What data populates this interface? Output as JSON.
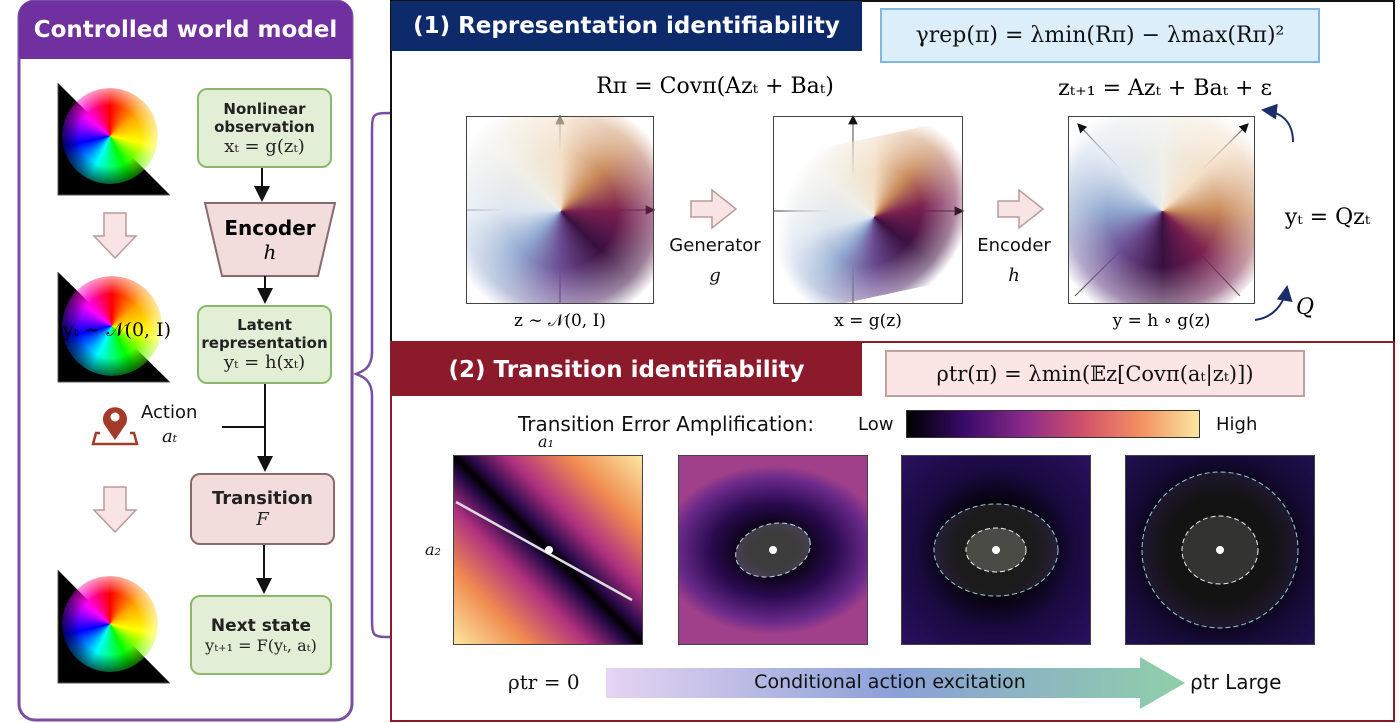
{
  "left_panel": {
    "title": "Controlled world model",
    "observation": {
      "label": "Nonlinear observation",
      "formula": "xₜ = g(zₜ)"
    },
    "encoder": {
      "label": "Encoder",
      "symbol": "h"
    },
    "latent": {
      "label": "Latent representation",
      "formula": "yₜ = h(xₜ)"
    },
    "latent_distribution": "yₜ ∼ 𝒩(0, I)",
    "action": {
      "label": "Action",
      "symbol": "aₜ"
    },
    "transition": {
      "label": "Transition",
      "symbol": "F"
    },
    "next_state": {
      "label": "Next state",
      "formula": "yₜ₊₁ = F(yₜ, aₜ)"
    }
  },
  "section1": {
    "title": "(1) Representation identifiability",
    "metric": "γrep(π) = λmin(Rπ) − λmax(Rπ)²",
    "covariance": "Rπ = Covπ(Azₜ + Baₜ)",
    "dynamics": "zₜ₊₁ = Azₜ + Baₜ + ε",
    "generator": {
      "label": "Generator",
      "symbol": "g"
    },
    "encoder": {
      "label": "Encoder",
      "symbol": "h"
    },
    "rotation": "yₜ = Qzₜ",
    "rotation_symbol": "Q",
    "plot_captions": [
      "z ∼ 𝒩(0, I)",
      "x = g(z)",
      "y = h ∘ g(z)"
    ]
  },
  "section2": {
    "title": "(2) Transition identifiability",
    "metric": "ρtr(π) = λmin(𝔼z[Covπ(aₜ|zₜ)])",
    "colorbar": {
      "title": "Transition Error Amplification:",
      "low": "Low",
      "high": "High"
    },
    "axis_x": "a₁",
    "axis_y": "a₂",
    "left_end": "ρtr = 0",
    "arrow_label": "Conditional action excitation",
    "right_end": "ρtr Large"
  }
}
